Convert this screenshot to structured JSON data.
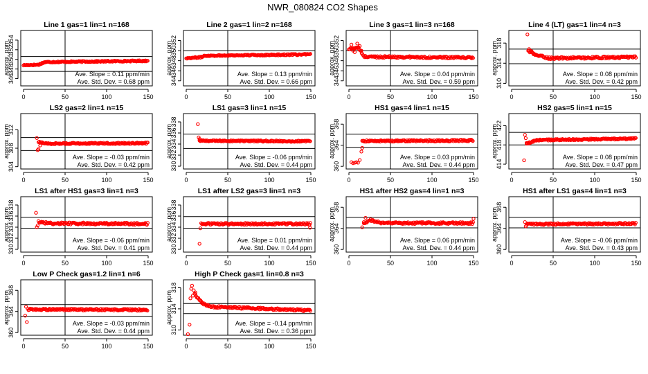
{
  "figure": {
    "title": "NWR_080824  CO2 Shapes"
  },
  "labels": {
    "ylabel": "approx. ppm",
    "slope_prefix": "Ave. Slope =",
    "slope_unit": "ppm/min",
    "sd_prefix": "Ave. Std. Dev. =",
    "sd_unit": "ppm"
  },
  "colors": {
    "points": "#ff0000",
    "lines": "#000000"
  },
  "chart_data": [
    {
      "type": "scatter",
      "title": "Line 1 gas=1 lin=1 n=168",
      "xlim": [
        0,
        150
      ],
      "xticks": [
        0,
        50,
        100,
        150
      ],
      "ylim": [
        344.5,
        356.0
      ],
      "yticks": [
        346,
        348,
        350,
        352,
        354
      ],
      "hlines": [
        347.5,
        350.6
      ],
      "vline": 50,
      "slope": "0.11",
      "sd": "0.68",
      "segments": [
        [
          0,
          348.8
        ],
        [
          18,
          348.9
        ],
        [
          22,
          349.2
        ],
        [
          26,
          349.45
        ],
        [
          150,
          349.7
        ]
      ],
      "noise": 0.12,
      "start": 0
    },
    {
      "type": "scatter",
      "title": "Line 2 gas=1 lin=2 n=168",
      "xlim": [
        0,
        150
      ],
      "xticks": [
        0,
        50,
        100,
        150
      ],
      "ylim": [
        343.0,
        354.0
      ],
      "yticks": [
        344,
        346,
        348,
        350,
        352
      ],
      "hlines": [
        347.0,
        350.0
      ],
      "vline": 50,
      "slope": "0.13",
      "sd": "0.66",
      "segments": [
        [
          0,
          348.5
        ],
        [
          18,
          348.7
        ],
        [
          22,
          349.0
        ],
        [
          150,
          349.25
        ]
      ],
      "noise": 0.12,
      "start": 0
    },
    {
      "type": "scatter",
      "title": "Line 3 gas=1 lin=3 n=168",
      "xlim": [
        0,
        150
      ],
      "xticks": [
        0,
        50,
        100,
        150
      ],
      "ylim": [
        343.0,
        354.0
      ],
      "yticks": [
        344,
        346,
        348,
        350,
        352
      ],
      "hlines": [
        347.0,
        350.0
      ],
      "vline": 50,
      "slope": "0.04",
      "sd": "0.59",
      "segments": [
        [
          0,
          350.3
        ],
        [
          8,
          350.6
        ],
        [
          12,
          350.5
        ],
        [
          18,
          348.8
        ],
        [
          150,
          348.6
        ]
      ],
      "noise": 0.18,
      "start": 0,
      "outliers": [
        [
          3,
          351.2
        ],
        [
          5,
          350.0
        ],
        [
          7,
          349.7
        ],
        [
          10,
          351.4
        ],
        [
          13,
          350.9
        ],
        [
          15,
          350.0
        ]
      ]
    },
    {
      "type": "scatter",
      "title": "Line 4 (LT) gas=1 lin=4 n=3",
      "xlim": [
        0,
        150
      ],
      "xticks": [
        0,
        50,
        100,
        150
      ],
      "ylim": [
        309.5,
        320.5
      ],
      "yticks": [
        310,
        314,
        318
      ],
      "hlines": [
        313.9,
        316.8
      ],
      "vline": 50,
      "slope": "0.08",
      "sd": "0.42",
      "segments": [
        [
          20,
          316.5
        ],
        [
          28,
          315.7
        ],
        [
          45,
          315.0
        ],
        [
          150,
          315.2
        ]
      ],
      "noise": 0.2,
      "start": 20,
      "outliers": [
        [
          19,
          319.7
        ],
        [
          21,
          316.8
        ],
        [
          24,
          316.4
        ]
      ]
    },
    {
      "type": "scatter",
      "title": "LS2 gas=2 lin=1 n=15",
      "xlim": [
        0,
        150
      ],
      "xticks": [
        0,
        50,
        100,
        150
      ],
      "ylim": [
        303.5,
        315.5
      ],
      "yticks": [
        304,
        308,
        312
      ],
      "hlines": [
        307.5,
        310.3
      ],
      "vline": 50,
      "slope": "-0.03",
      "sd": "0.42",
      "segments": [
        [
          18,
          309.3
        ],
        [
          30,
          309.0
        ],
        [
          150,
          309.1
        ]
      ],
      "noise": 0.15,
      "start": 18,
      "outliers": [
        [
          16,
          310.2
        ],
        [
          17,
          307.6
        ],
        [
          18,
          307.8
        ],
        [
          20,
          308.6
        ]
      ]
    },
    {
      "type": "scatter",
      "title": "LS1 gas=3 lin=1 n=15",
      "xlim": [
        0,
        150
      ],
      "xticks": [
        0,
        50,
        100,
        150
      ],
      "ylim": [
        329.5,
        339.5
      ],
      "yticks": [
        330,
        332,
        334,
        336,
        338
      ],
      "hlines": [
        333.2,
        335.8
      ],
      "vline": 50,
      "slope": "-0.06",
      "sd": "0.44",
      "segments": [
        [
          16,
          334.6
        ],
        [
          150,
          334.5
        ]
      ],
      "noise": 0.12,
      "start": 16,
      "outliers": [
        [
          14,
          337.6
        ],
        [
          15,
          335.2
        ],
        [
          16,
          334.9
        ]
      ]
    },
    {
      "type": "scatter",
      "title": "HS1 gas=4 lin=1 n=15",
      "xlim": [
        0,
        150
      ],
      "xticks": [
        0,
        50,
        100,
        150
      ],
      "ylim": [
        359.5,
        370.0
      ],
      "yticks": [
        360,
        364,
        368
      ],
      "hlines": [
        363.6,
        366.1
      ],
      "vline": 50,
      "slope": "0.03",
      "sd": "0.44",
      "segments": [
        [
          16,
          364.8
        ],
        [
          150,
          364.9
        ]
      ],
      "noise": 0.15,
      "start": 16,
      "outliers": [
        [
          3,
          360.8
        ],
        [
          5,
          360.6
        ],
        [
          7,
          360.7
        ],
        [
          9,
          360.8
        ],
        [
          11,
          360.7
        ],
        [
          13,
          361.2
        ],
        [
          15,
          362.8
        ],
        [
          16,
          363.5
        ]
      ]
    },
    {
      "type": "scatter",
      "title": "HS2 gas=5 lin=1 n=15",
      "xlim": [
        0,
        150
      ],
      "xticks": [
        0,
        50,
        100,
        150
      ],
      "ylim": [
        413.0,
        424.5
      ],
      "yticks": [
        414,
        418,
        422
      ],
      "hlines": [
        418.0,
        420.6
      ],
      "vline": 50,
      "slope": "0.08",
      "sd": "0.47",
      "segments": [
        [
          18,
          418.2
        ],
        [
          30,
          419.0
        ],
        [
          150,
          419.3
        ]
      ],
      "noise": 0.15,
      "start": 18,
      "outliers": [
        [
          15,
          414.8
        ],
        [
          16,
          420.1
        ],
        [
          17,
          419.4
        ],
        [
          18,
          418.4
        ]
      ]
    },
    {
      "type": "scatter",
      "title": "LS1 after HS1 gas=3 lin=1 n=3",
      "xlim": [
        0,
        150
      ],
      "xticks": [
        0,
        50,
        100,
        150
      ],
      "ylim": [
        329.5,
        339.5
      ],
      "yticks": [
        330,
        332,
        334,
        336,
        338
      ],
      "hlines": [
        333.8,
        335.8
      ],
      "vline": 50,
      "slope": "-0.06",
      "sd": "0.41",
      "segments": [
        [
          18,
          335.0
        ],
        [
          30,
          334.7
        ],
        [
          150,
          334.6
        ]
      ],
      "noise": 0.18,
      "start": 18,
      "outliers": [
        [
          15,
          336.6
        ],
        [
          16,
          334.0
        ],
        [
          17,
          334.3
        ]
      ]
    },
    {
      "type": "scatter",
      "title": "LS1 after LS2 gas=3 lin=1 n=3",
      "xlim": [
        0,
        150
      ],
      "xticks": [
        0,
        50,
        100,
        150
      ],
      "ylim": [
        329.5,
        339.5
      ],
      "yticks": [
        330,
        332,
        334,
        336,
        338
      ],
      "hlines": [
        333.8,
        335.9
      ],
      "vline": 50,
      "slope": "0.01",
      "sd": "0.44",
      "segments": [
        [
          18,
          334.6
        ],
        [
          150,
          334.6
        ]
      ],
      "noise": 0.16,
      "start": 18,
      "outliers": [
        [
          16,
          331.0
        ],
        [
          17,
          333.8
        ],
        [
          149,
          333.9
        ]
      ]
    },
    {
      "type": "scatter",
      "title": "HS1 after HS2 gas=4 lin=1 n=3",
      "xlim": [
        0,
        150
      ],
      "xticks": [
        0,
        50,
        100,
        150
      ],
      "ylim": [
        359.5,
        370.0
      ],
      "yticks": [
        360,
        364,
        368
      ],
      "hlines": [
        364.1,
        366.1
      ],
      "vline": 50,
      "slope": "0.06",
      "sd": "0.44",
      "segments": [
        [
          18,
          364.8
        ],
        [
          25,
          365.6
        ],
        [
          40,
          365.0
        ],
        [
          150,
          365.0
        ]
      ],
      "noise": 0.18,
      "start": 18,
      "outliers": [
        [
          16,
          364.2
        ],
        [
          18,
          365.2
        ],
        [
          20,
          366.0
        ],
        [
          150,
          365.8
        ]
      ]
    },
    {
      "type": "scatter",
      "title": "HS1 after LS1 gas=4 lin=1 n=3",
      "xlim": [
        0,
        150
      ],
      "xticks": [
        0,
        50,
        100,
        150
      ],
      "ylim": [
        359.5,
        370.0
      ],
      "yticks": [
        360,
        364,
        368
      ],
      "hlines": [
        364.1,
        366.1
      ],
      "vline": 50,
      "slope": "-0.06",
      "sd": "0.43",
      "segments": [
        [
          18,
          364.8
        ],
        [
          150,
          364.9
        ]
      ],
      "noise": 0.16,
      "start": 18,
      "outliers": [
        [
          16,
          365.2
        ],
        [
          17,
          364.4
        ]
      ]
    },
    {
      "type": "scatter",
      "title": "Low P Check gas=1.2 lin=1 n=6",
      "xlim": [
        0,
        150
      ],
      "xticks": [
        0,
        50,
        100,
        150
      ],
      "ylim": [
        359.5,
        370.0
      ],
      "yticks": [
        360,
        364,
        368
      ],
      "hlines": [
        363.1,
        365.3
      ],
      "vline": 50,
      "slope": "-0.03",
      "sd": "0.44",
      "segments": [
        [
          6,
          364.4
        ],
        [
          150,
          364.3
        ]
      ],
      "noise": 0.16,
      "start": 6,
      "outliers": [
        [
          2,
          363.2
        ],
        [
          3,
          364.9
        ],
        [
          4,
          362.0
        ],
        [
          5,
          364.5
        ]
      ]
    },
    {
      "type": "scatter",
      "title": "High P Check gas=1 lin=0.8 n=3",
      "xlim": [
        0,
        150
      ],
      "xticks": [
        0,
        50,
        100,
        150
      ],
      "ylim": [
        309.0,
        319.5
      ],
      "yticks": [
        310,
        314,
        318
      ],
      "hlines": [
        313.1,
        315.0
      ],
      "vline": 50,
      "slope": "-0.14",
      "sd": "0.36",
      "segments": [
        [
          10,
          317.0
        ],
        [
          14,
          316.0
        ],
        [
          20,
          315.0
        ],
        [
          30,
          314.4
        ],
        [
          100,
          314.0
        ],
        [
          150,
          313.7
        ]
      ],
      "noise": 0.18,
      "start": 10,
      "outliers": [
        [
          2,
          309.2
        ],
        [
          4,
          311.0
        ],
        [
          5,
          316.0
        ],
        [
          6,
          317.8
        ],
        [
          7,
          318.4
        ],
        [
          8,
          316.5
        ],
        [
          9,
          317.5
        ],
        [
          11,
          317.1
        ]
      ]
    }
  ]
}
